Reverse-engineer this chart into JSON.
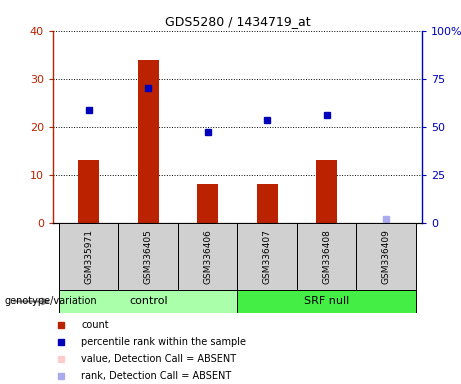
{
  "title": "GDS5280 / 1434719_at",
  "samples": [
    "GSM335971",
    "GSM336405",
    "GSM336406",
    "GSM336407",
    "GSM336408",
    "GSM336409"
  ],
  "count_values": [
    13,
    34,
    8,
    8,
    13,
    0
  ],
  "count_absent": [
    false,
    false,
    false,
    false,
    false,
    true
  ],
  "rank_values_left": [
    23.5,
    28,
    19,
    21.5,
    22.5,
    0.8
  ],
  "rank_absent": [
    false,
    false,
    false,
    false,
    false,
    true
  ],
  "groups": [
    {
      "label": "control",
      "start": 0,
      "end": 3,
      "color": "#aaffaa"
    },
    {
      "label": "SRF null",
      "start": 3,
      "end": 6,
      "color": "#44ee44"
    }
  ],
  "group_label": "genotype/variation",
  "ylim_left": [
    0,
    40
  ],
  "ylim_right": [
    0,
    100
  ],
  "yticks_left": [
    0,
    10,
    20,
    30,
    40
  ],
  "ytick_labels_left": [
    "0",
    "10",
    "20",
    "30",
    "40"
  ],
  "yticks_right_vals": [
    0,
    25,
    50,
    75,
    100
  ],
  "ytick_labels_right": [
    "0",
    "25",
    "50",
    "75",
    "100%"
  ],
  "bar_color": "#bb2200",
  "bar_absent_color": "#ffcccc",
  "rank_color": "#0000bb",
  "rank_absent_color": "#aaaaee",
  "sample_box_color": "#d0d0d0",
  "bar_width": 0.35,
  "legend_items": [
    {
      "label": "count",
      "color": "#bb2200"
    },
    {
      "label": "percentile rank within the sample",
      "color": "#0000bb"
    },
    {
      "label": "value, Detection Call = ABSENT",
      "color": "#ffcccc"
    },
    {
      "label": "rank, Detection Call = ABSENT",
      "color": "#aaaaee"
    }
  ]
}
